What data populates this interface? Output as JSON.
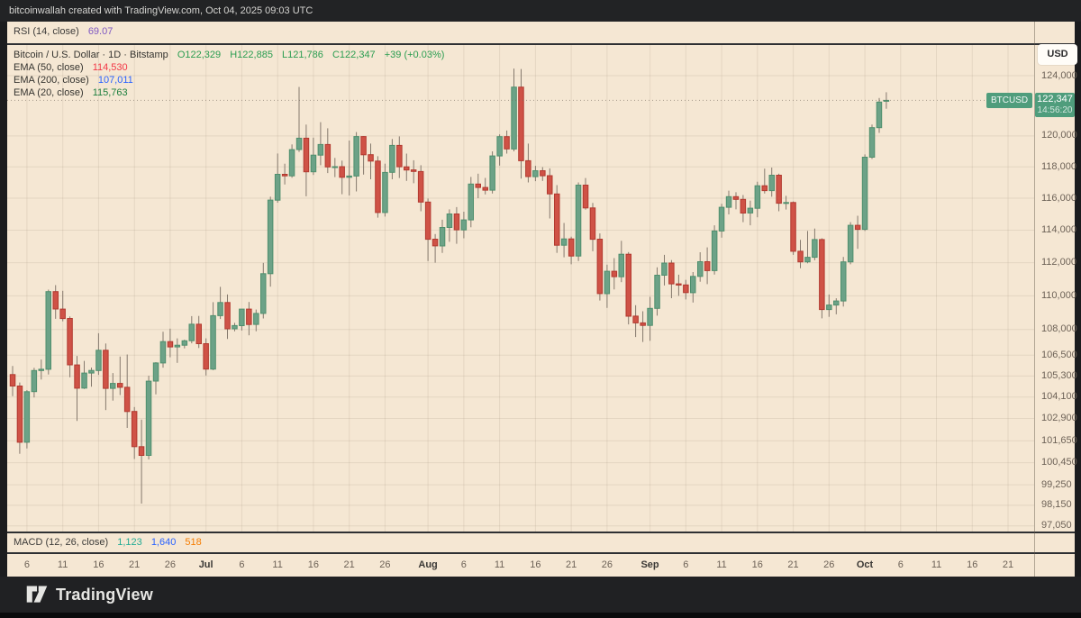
{
  "frame": {
    "attribution": "bitcoinwallah created with TradingView.com, Oct 04, 2025 09:03 UTC",
    "logo_text": "TradingView"
  },
  "rsi_pane": {
    "label": "RSI (14, close)",
    "value": "69.07",
    "value_color": "#7e57c2"
  },
  "main_legend": {
    "title": "Bitcoin / U.S. Dollar · 1D · Bitstamp",
    "ohlc": {
      "o": "O122,329",
      "h": "H122,885",
      "l": "L121,786",
      "c": "C122,347",
      "change": "+39 (+0.03%)",
      "color": "#2a9d50"
    },
    "emas": [
      {
        "label": "EMA (50, close)",
        "value": "114,530",
        "color": "#f23645"
      },
      {
        "label": "EMA (200, close)",
        "value": "107,011",
        "color": "#2962ff"
      },
      {
        "label": "EMA (20, close)",
        "value": "115,763",
        "color": "#1b7e3c"
      }
    ]
  },
  "macd_pane": {
    "label": "MACD (12, 26, close)",
    "values": [
      {
        "text": "1,123",
        "color": "#22ab94"
      },
      {
        "text": "1,640",
        "color": "#2962ff"
      },
      {
        "text": "518",
        "color": "#f57c00"
      }
    ]
  },
  "price_axis": {
    "currency_button": "USD",
    "ticks": [
      {
        "label": "124,000",
        "price": 124000
      },
      {
        "label": "120,000",
        "price": 120000
      },
      {
        "label": "118,000",
        "price": 118000
      },
      {
        "label": "116,000",
        "price": 116000
      },
      {
        "label": "114,000",
        "price": 114000
      },
      {
        "label": "112,000",
        "price": 112000
      },
      {
        "label": "110,000",
        "price": 110000
      },
      {
        "label": "108,000",
        "price": 108000
      },
      {
        "label": "106,500",
        "price": 106500
      },
      {
        "label": "105,300",
        "price": 105300
      },
      {
        "label": "104,100",
        "price": 104100
      },
      {
        "label": "102,900",
        "price": 102900
      },
      {
        "label": "101,650",
        "price": 101650
      },
      {
        "label": "100,450",
        "price": 100450
      },
      {
        "label": "99,250",
        "price": 99250
      },
      {
        "label": "98,150",
        "price": 98150
      },
      {
        "label": "97,050",
        "price": 97050
      }
    ],
    "badge": {
      "symbol": "BTCUSD",
      "price": "122,347",
      "countdown": "14:56:20",
      "value": 122347,
      "color": "#4f9d7c"
    }
  },
  "time_axis": {
    "ticks": [
      {
        "label": "6",
        "index": 2,
        "major": false
      },
      {
        "label": "11",
        "index": 7,
        "major": false
      },
      {
        "label": "16",
        "index": 12,
        "major": false
      },
      {
        "label": "21",
        "index": 17,
        "major": false
      },
      {
        "label": "26",
        "index": 22,
        "major": false
      },
      {
        "label": "Jul",
        "index": 27,
        "major": true
      },
      {
        "label": "6",
        "index": 32,
        "major": false
      },
      {
        "label": "11",
        "index": 37,
        "major": false
      },
      {
        "label": "16",
        "index": 42,
        "major": false
      },
      {
        "label": "21",
        "index": 47,
        "major": false
      },
      {
        "label": "26",
        "index": 52,
        "major": false
      },
      {
        "label": "Aug",
        "index": 58,
        "major": true
      },
      {
        "label": "6",
        "index": 63,
        "major": false
      },
      {
        "label": "11",
        "index": 68,
        "major": false
      },
      {
        "label": "16",
        "index": 73,
        "major": false
      },
      {
        "label": "21",
        "index": 78,
        "major": false
      },
      {
        "label": "26",
        "index": 83,
        "major": false
      },
      {
        "label": "Sep",
        "index": 89,
        "major": true
      },
      {
        "label": "6",
        "index": 94,
        "major": false
      },
      {
        "label": "11",
        "index": 99,
        "major": false
      },
      {
        "label": "16",
        "index": 104,
        "major": false
      },
      {
        "label": "21",
        "index": 109,
        "major": false
      },
      {
        "label": "26",
        "index": 114,
        "major": false
      },
      {
        "label": "Oct",
        "index": 119,
        "major": true
      },
      {
        "label": "6",
        "index": 124,
        "major": false
      },
      {
        "label": "11",
        "index": 129,
        "major": false
      },
      {
        "label": "16",
        "index": 134,
        "major": false
      },
      {
        "label": "21",
        "index": 139,
        "major": false
      }
    ]
  },
  "chart_data": {
    "type": "candlestick",
    "title": "Bitcoin / U.S. Dollar",
    "symbol": "BTCUSD",
    "exchange": "Bitstamp",
    "interval": "1D",
    "scale": "log",
    "start_date": "2025-06-04",
    "end_date": "2025-10-04",
    "ylim": [
      97050,
      124500
    ],
    "last_price": 122347,
    "colors": {
      "background": "#f5e7d3",
      "up_fill": "#6ca287",
      "up_border": "#4f8f6d",
      "down_fill": "#cf5246",
      "down_border": "#b2392f",
      "wick": "#85796d",
      "grid": "rgba(150,133,110,0.17)",
      "price_line": "rgba(115,104,92,0.6)"
    },
    "candles": [
      [
        105384,
        105874,
        104150,
        104732
      ],
      [
        104732,
        104930,
        100940,
        101575
      ],
      [
        101575,
        104500,
        101230,
        104409
      ],
      [
        104409,
        105770,
        104080,
        105615
      ],
      [
        105615,
        106250,
        105100,
        105690
      ],
      [
        105690,
        110370,
        105390,
        110250
      ],
      [
        110250,
        110640,
        108630,
        109210
      ],
      [
        109210,
        110300,
        108480,
        108650
      ],
      [
        108650,
        108770,
        105230,
        105940
      ],
      [
        105940,
        106460,
        102760,
        104610
      ],
      [
        104610,
        106170,
        104560,
        105470
      ],
      [
        105470,
        105790,
        104690,
        105620
      ],
      [
        105620,
        107780,
        105370,
        106790
      ],
      [
        106790,
        107180,
        103370,
        104600
      ],
      [
        104600,
        105470,
        103900,
        104880
      ],
      [
        104880,
        106420,
        104220,
        104660
      ],
      [
        104660,
        106540,
        102370,
        103290
      ],
      [
        103290,
        103540,
        100650,
        101330
      ],
      [
        101330,
        102830,
        98240,
        100850
      ],
      [
        100850,
        105320,
        100630,
        105010
      ],
      [
        105010,
        106100,
        104260,
        106050
      ],
      [
        106050,
        107870,
        105780,
        107290
      ],
      [
        107290,
        108050,
        106380,
        106980
      ],
      [
        106980,
        107480,
        106060,
        107080
      ],
      [
        107080,
        107410,
        106900,
        107340
      ],
      [
        107340,
        108790,
        107190,
        108310
      ],
      [
        108310,
        108800,
        106920,
        107170
      ],
      [
        107170,
        107480,
        105330,
        105700
      ],
      [
        105700,
        109620,
        105640,
        108820
      ],
      [
        108820,
        110540,
        108620,
        109600
      ],
      [
        109600,
        110080,
        107450,
        108040
      ],
      [
        108040,
        108390,
        107900,
        108230
      ],
      [
        108230,
        109210,
        107940,
        109210
      ],
      [
        109210,
        109630,
        107660,
        108300
      ],
      [
        108300,
        109180,
        107900,
        108950
      ],
      [
        108950,
        111990,
        108650,
        111330
      ],
      [
        111330,
        116100,
        110550,
        115880
      ],
      [
        115880,
        118860,
        115720,
        117520
      ],
      [
        117520,
        118200,
        116870,
        117420
      ],
      [
        117420,
        119450,
        117300,
        119110
      ],
      [
        119110,
        123240,
        118960,
        119850
      ],
      [
        119850,
        120740,
        116120,
        117680
      ],
      [
        117680,
        119890,
        117480,
        118750
      ],
      [
        118750,
        120900,
        118100,
        119440
      ],
      [
        119440,
        120500,
        117600,
        117990
      ],
      [
        117990,
        118570,
        117340,
        118010
      ],
      [
        118010,
        118400,
        116250,
        117330
      ],
      [
        117330,
        119700,
        116170,
        117410
      ],
      [
        117410,
        120250,
        116430,
        119960
      ],
      [
        119960,
        119980,
        117500,
        118780
      ],
      [
        118780,
        119500,
        117200,
        118370
      ],
      [
        118370,
        118680,
        114780,
        115100
      ],
      [
        115100,
        118200,
        114850,
        117640
      ],
      [
        117640,
        119800,
        117200,
        119380
      ],
      [
        119380,
        119970,
        117280,
        118000
      ],
      [
        118000,
        118850,
        117100,
        117800
      ],
      [
        117800,
        118420,
        116950,
        117700
      ],
      [
        117700,
        118100,
        115180,
        115760
      ],
      [
        115760,
        115980,
        112100,
        113440
      ],
      [
        113440,
        113760,
        112000,
        113030
      ],
      [
        113030,
        114650,
        112600,
        114170
      ],
      [
        114170,
        115300,
        113280,
        115010
      ],
      [
        115010,
        115440,
        113160,
        114020
      ],
      [
        114020,
        115150,
        113500,
        114640
      ],
      [
        114640,
        117350,
        114180,
        116900
      ],
      [
        116900,
        117560,
        116000,
        116680
      ],
      [
        116680,
        117290,
        116240,
        116510
      ],
      [
        116510,
        119000,
        116300,
        118700
      ],
      [
        118700,
        120100,
        118080,
        119950
      ],
      [
        119950,
        120350,
        118850,
        119150
      ],
      [
        119150,
        124480,
        119000,
        123230
      ],
      [
        123230,
        124450,
        117250,
        118390
      ],
      [
        118390,
        119500,
        117000,
        117370
      ],
      [
        117370,
        118060,
        117080,
        117750
      ],
      [
        117750,
        117980,
        117100,
        117430
      ],
      [
        117430,
        117900,
        114730,
        116270
      ],
      [
        116270,
        116830,
        112600,
        113070
      ],
      [
        113070,
        114450,
        112330,
        113460
      ],
      [
        113460,
        113600,
        111900,
        112410
      ],
      [
        112410,
        117000,
        112100,
        116830
      ],
      [
        116830,
        117280,
        115280,
        115390
      ],
      [
        115390,
        115700,
        112700,
        113440
      ],
      [
        113440,
        113800,
        109720,
        110130
      ],
      [
        110130,
        111880,
        109280,
        111480
      ],
      [
        111480,
        112280,
        110380,
        111150
      ],
      [
        111150,
        113340,
        110820,
        112520
      ],
      [
        112520,
        112650,
        108300,
        108790
      ],
      [
        108790,
        109440,
        107560,
        108390
      ],
      [
        108390,
        109080,
        107270,
        108240
      ],
      [
        108240,
        109940,
        107340,
        109250
      ],
      [
        109250,
        111720,
        108820,
        111240
      ],
      [
        111240,
        112480,
        110620,
        111980
      ],
      [
        111980,
        112160,
        109860,
        110720
      ],
      [
        110720,
        111270,
        110000,
        110650
      ],
      [
        110650,
        110960,
        109780,
        110190
      ],
      [
        110190,
        111430,
        109600,
        111170
      ],
      [
        111170,
        112640,
        110850,
        112060
      ],
      [
        112060,
        112940,
        110700,
        111520
      ],
      [
        111520,
        114300,
        111280,
        113950
      ],
      [
        113950,
        115650,
        113540,
        115430
      ],
      [
        115430,
        116480,
        114980,
        116100
      ],
      [
        116100,
        116380,
        115300,
        115930
      ],
      [
        115930,
        116200,
        114500,
        115070
      ],
      [
        115070,
        115850,
        114300,
        115370
      ],
      [
        115370,
        117050,
        114800,
        116790
      ],
      [
        116790,
        117880,
        116300,
        116480
      ],
      [
        116480,
        117950,
        116090,
        117460
      ],
      [
        117460,
        117560,
        115180,
        115680
      ],
      [
        115680,
        116150,
        115290,
        115730
      ],
      [
        115730,
        115800,
        112480,
        112700
      ],
      [
        112700,
        113400,
        111660,
        112050
      ],
      [
        112050,
        113950,
        111970,
        112330
      ],
      [
        112330,
        114100,
        112150,
        113420
      ],
      [
        113420,
        113500,
        108660,
        109180
      ],
      [
        109180,
        110080,
        108750,
        109450
      ],
      [
        109450,
        109850,
        108900,
        109690
      ],
      [
        109690,
        112350,
        109360,
        112050
      ],
      [
        112050,
        114500,
        111900,
        114300
      ],
      [
        114300,
        114900,
        112850,
        114050
      ],
      [
        114050,
        118800,
        113950,
        118620
      ],
      [
        118620,
        120750,
        118500,
        120540
      ],
      [
        120540,
        122500,
        120200,
        122230
      ],
      [
        122329,
        122885,
        121786,
        122347
      ]
    ]
  }
}
